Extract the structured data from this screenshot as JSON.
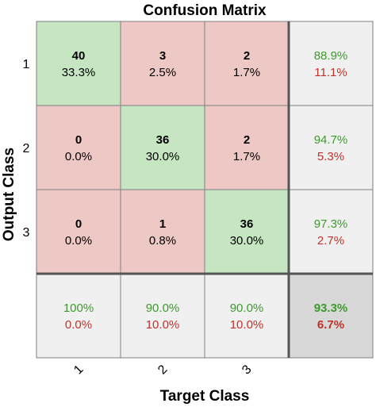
{
  "chart_data": {
    "type": "heatmap",
    "title": "Confusion Matrix",
    "xlabel": "Target Class",
    "ylabel": "Output Class",
    "x_tick_labels": [
      "1",
      "2",
      "3"
    ],
    "y_tick_labels": [
      "1",
      "2",
      "3"
    ],
    "cells": [
      [
        {
          "count": "40",
          "percent": "33.3%"
        },
        {
          "count": "3",
          "percent": "2.5%"
        },
        {
          "count": "2",
          "percent": "1.7%"
        }
      ],
      [
        {
          "count": "0",
          "percent": "0.0%"
        },
        {
          "count": "36",
          "percent": "30.0%"
        },
        {
          "count": "2",
          "percent": "1.7%"
        }
      ],
      [
        {
          "count": "0",
          "percent": "0.0%"
        },
        {
          "count": "1",
          "percent": "0.8%"
        },
        {
          "count": "36",
          "percent": "30.0%"
        }
      ]
    ],
    "row_summary": [
      {
        "correct": "88.9%",
        "incorrect": "11.1%"
      },
      {
        "correct": "94.7%",
        "incorrect": "5.3%"
      },
      {
        "correct": "97.3%",
        "incorrect": "2.7%"
      }
    ],
    "column_summary": [
      {
        "correct": "100%",
        "incorrect": "0.0%"
      },
      {
        "correct": "90.0%",
        "incorrect": "10.0%"
      },
      {
        "correct": "90.0%",
        "incorrect": "10.0%"
      }
    ],
    "overall": {
      "correct": "93.3%",
      "incorrect": "6.7%"
    },
    "colors": {
      "correct_cell": "#c6e6c2",
      "incorrect_cell": "#eec8c4",
      "summary_cell": "#f0f0f0",
      "overall_cell": "#d8d8d8",
      "correct_text": "#3c9a2c",
      "incorrect_text": "#c0322a"
    }
  }
}
